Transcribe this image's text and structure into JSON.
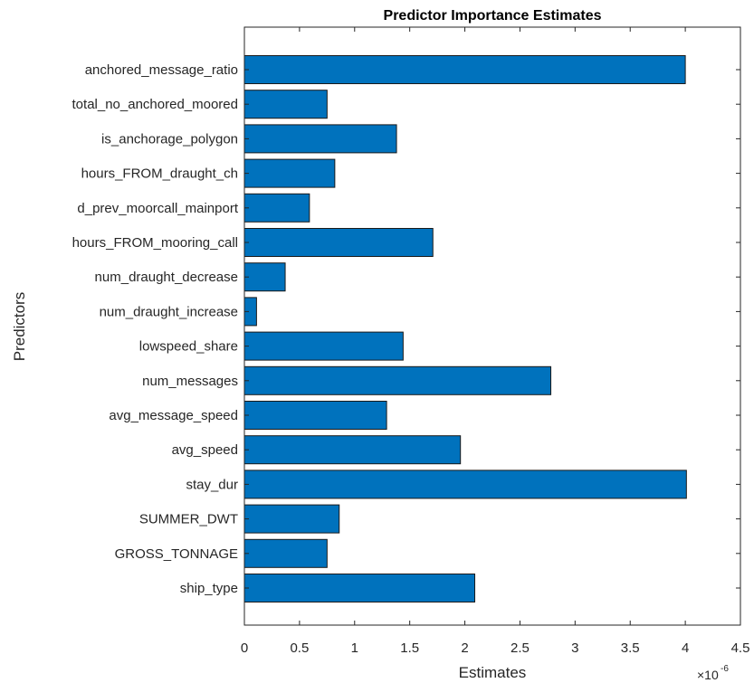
{
  "chart_data": {
    "type": "bar",
    "orientation": "horizontal",
    "title": "Predictor Importance Estimates",
    "xlabel": "Estimates",
    "ylabel": "Predictors",
    "x_multiplier": "×10",
    "x_multiplier_exp": "-6",
    "xlim": [
      0,
      4.5
    ],
    "xticks": [
      "0",
      "0.5",
      "1",
      "1.5",
      "2",
      "2.5",
      "3",
      "3.5",
      "4",
      "4.5"
    ],
    "grid": false,
    "categories": [
      "anchored_message_ratio",
      "total_no_anchored_moored",
      "is_anchorage_polygon",
      "hours_FROM_draught_ch",
      "d_prev_moorcall_mainport",
      "hours_FROM_mooring_call",
      "num_draught_decrease",
      "num_draught_increase",
      "lowspeed_share",
      "num_messages",
      "avg_message_speed",
      "avg_speed",
      "stay_dur",
      "SUMMER_DWT",
      "GROSS_TONNAGE",
      "ship_type"
    ],
    "values": [
      4.0,
      0.75,
      1.38,
      0.82,
      0.59,
      1.71,
      0.37,
      0.11,
      1.44,
      2.78,
      1.29,
      1.96,
      4.01,
      0.86,
      0.75,
      2.09
    ],
    "bar_color": "#0072BD"
  }
}
